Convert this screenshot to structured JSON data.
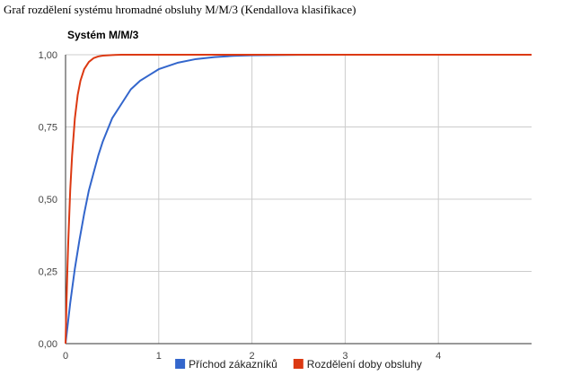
{
  "caption": "Graf rozdělení systému hromadné obsluhy M/M/3 (Kendallova klasifikace)",
  "chart_data": {
    "type": "line",
    "title": "Systém M/M/3",
    "xlabel": "",
    "ylabel": "",
    "xlim": [
      0,
      5
    ],
    "ylim": [
      0,
      1
    ],
    "x_ticks": [
      0,
      1,
      2,
      3,
      4
    ],
    "x_tick_labels": [
      "0",
      "1",
      "2",
      "3",
      "4"
    ],
    "y_ticks": [
      0,
      0.25,
      0.5,
      0.75,
      1
    ],
    "y_tick_labels": [
      "0,00",
      "0,25",
      "0,50",
      "0,75",
      "1,00"
    ],
    "grid": true,
    "legend_position": "bottom",
    "series": [
      {
        "name": "Příchod zákazníků",
        "color": "#3366cc",
        "x": [
          0,
          0.05,
          0.1,
          0.15,
          0.2,
          0.25,
          0.3,
          0.35,
          0.4,
          0.5,
          0.6,
          0.7,
          0.8,
          0.9,
          1.0,
          1.2,
          1.4,
          1.6,
          1.8,
          2.0,
          2.5,
          3.0,
          4.0,
          5.0
        ],
        "y": [
          0,
          0.14,
          0.26,
          0.36,
          0.45,
          0.53,
          0.59,
          0.65,
          0.7,
          0.78,
          0.83,
          0.88,
          0.91,
          0.93,
          0.95,
          0.972,
          0.985,
          0.992,
          0.996,
          0.998,
          0.9995,
          1.0,
          1.0,
          1.0
        ]
      },
      {
        "name": "Rozdělení doby obsluhy",
        "color": "#dc3912",
        "x": [
          0,
          0.01,
          0.02,
          0.03,
          0.05,
          0.07,
          0.1,
          0.13,
          0.16,
          0.2,
          0.25,
          0.3,
          0.35,
          0.4,
          0.5,
          0.6,
          0.8,
          1.0,
          2.0,
          3.0,
          4.0,
          5.0
        ],
        "y": [
          0,
          0.14,
          0.26,
          0.36,
          0.53,
          0.65,
          0.78,
          0.86,
          0.91,
          0.95,
          0.975,
          0.988,
          0.994,
          0.997,
          0.999,
          1.0,
          1.0,
          1.0,
          1.0,
          1.0,
          1.0,
          1.0
        ]
      }
    ]
  }
}
